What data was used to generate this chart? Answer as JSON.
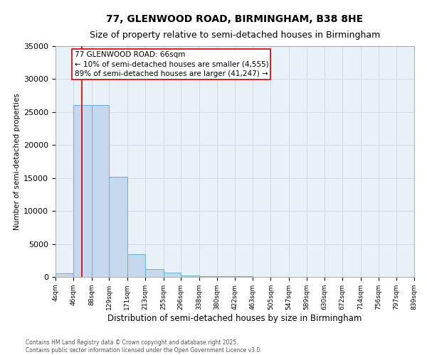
{
  "title_line1": "77, GLENWOOD ROAD, BIRMINGHAM, B38 8HE",
  "title_line2": "Size of property relative to semi-detached houses in Birmingham",
  "xlabel": "Distribution of semi-detached houses by size in Birmingham",
  "ylabel": "Number of semi-detached properties",
  "annotation_title": "77 GLENWOOD ROAD: 66sqm",
  "annotation_line2": "← 10% of semi-detached houses are smaller (4,555)",
  "annotation_line3": "89% of semi-detached houses are larger (41,247) →",
  "property_size": 66,
  "footnote_line1": "Contains HM Land Registry data © Crown copyright and database right 2025.",
  "footnote_line2": "Contains public sector information licensed under the Open Government Licence v3.0.",
  "bin_edges": [
    4,
    46,
    88,
    129,
    171,
    213,
    255,
    296,
    338,
    380,
    422,
    463,
    505,
    547,
    589,
    630,
    672,
    714,
    756,
    797,
    839
  ],
  "bar_heights": [
    500,
    26100,
    26100,
    15200,
    3400,
    1200,
    600,
    200,
    100,
    80,
    60,
    40,
    30,
    25,
    20,
    15,
    12,
    10,
    8,
    5
  ],
  "bar_color": "#c5d8ee",
  "bar_edge_color": "#6baed6",
  "vline_color": "#cc0000",
  "vline_x": 66,
  "annotation_box_color": "#cc0000",
  "ylim": [
    0,
    35000
  ],
  "yticks": [
    0,
    5000,
    10000,
    15000,
    20000,
    25000,
    30000,
    35000
  ],
  "grid_color": "#d0dce8",
  "bg_color": "#e8f0f8",
  "title_fontsize": 10,
  "subtitle_fontsize": 9,
  "annotation_fontsize": 7.5,
  "ylabel_fontsize": 7.5,
  "xlabel_fontsize": 8.5,
  "footnote_fontsize": 5.5,
  "ytick_fontsize": 8,
  "xtick_fontsize": 6.5
}
